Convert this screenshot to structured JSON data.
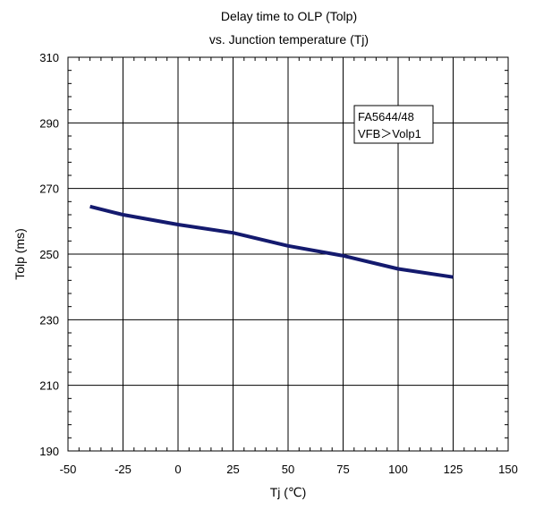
{
  "chart_data": {
    "type": "line",
    "title": [
      "Delay time to OLP (Tolp)",
      "vs. Junction temperature (Tj)"
    ],
    "xlabel": "Tj (℃)",
    "ylabel": "Tolp (ms)",
    "xlim": [
      -50,
      150
    ],
    "ylim": [
      190,
      310
    ],
    "xticks": [
      "-50",
      "-25",
      "0",
      "25",
      "50",
      "75",
      "100",
      "125",
      "150"
    ],
    "yticks": [
      "190",
      "210",
      "230",
      "250",
      "270",
      "290",
      "310"
    ],
    "grid": true,
    "annotation": [
      "FA5644/48",
      "VFB＞Volp1"
    ],
    "series": [
      {
        "color": "#141a6e",
        "x": [
          -40,
          -25,
          0,
          25,
          50,
          75,
          100,
          125
        ],
        "y": [
          264.5,
          262,
          259,
          256.5,
          252.5,
          249.5,
          245.5,
          243
        ]
      }
    ]
  }
}
